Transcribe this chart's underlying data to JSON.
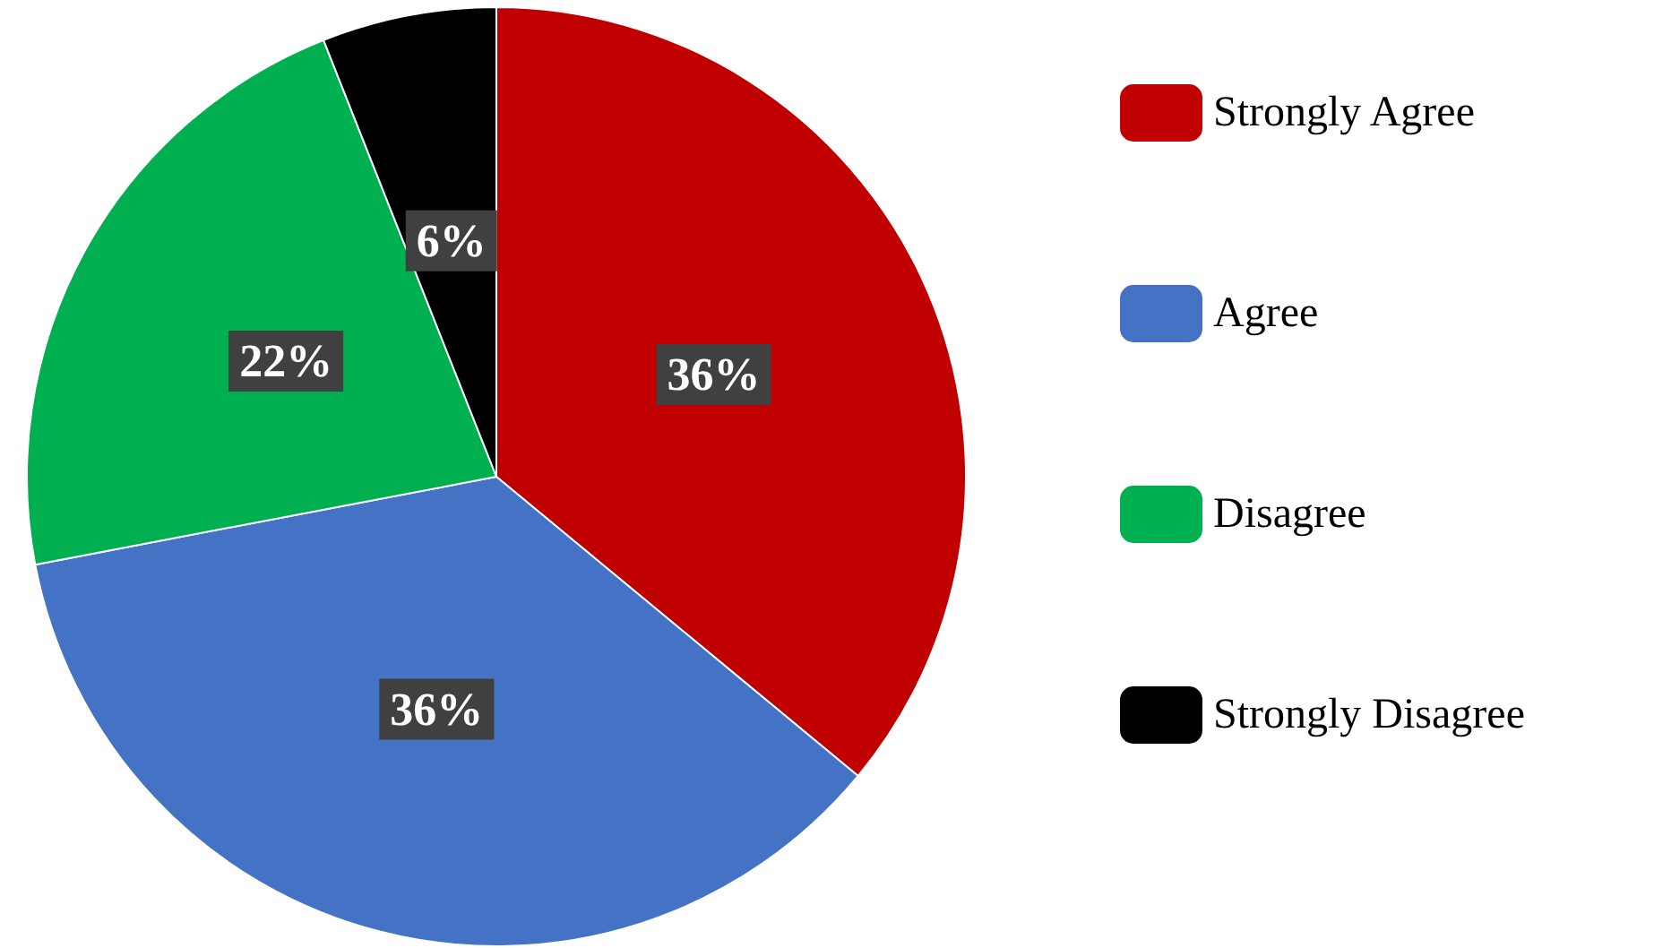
{
  "chart_data": {
    "type": "pie",
    "categories": [
      "Strongly Agree",
      "Agree",
      "Disagree",
      "Strongly Disagree"
    ],
    "values": [
      36,
      36,
      22,
      6
    ],
    "colors": [
      "#c00000",
      "#4472c4",
      "#00b050",
      "#000000"
    ],
    "value_labels": [
      "36%",
      "36%",
      "22%",
      "6%"
    ],
    "legend": "right"
  }
}
